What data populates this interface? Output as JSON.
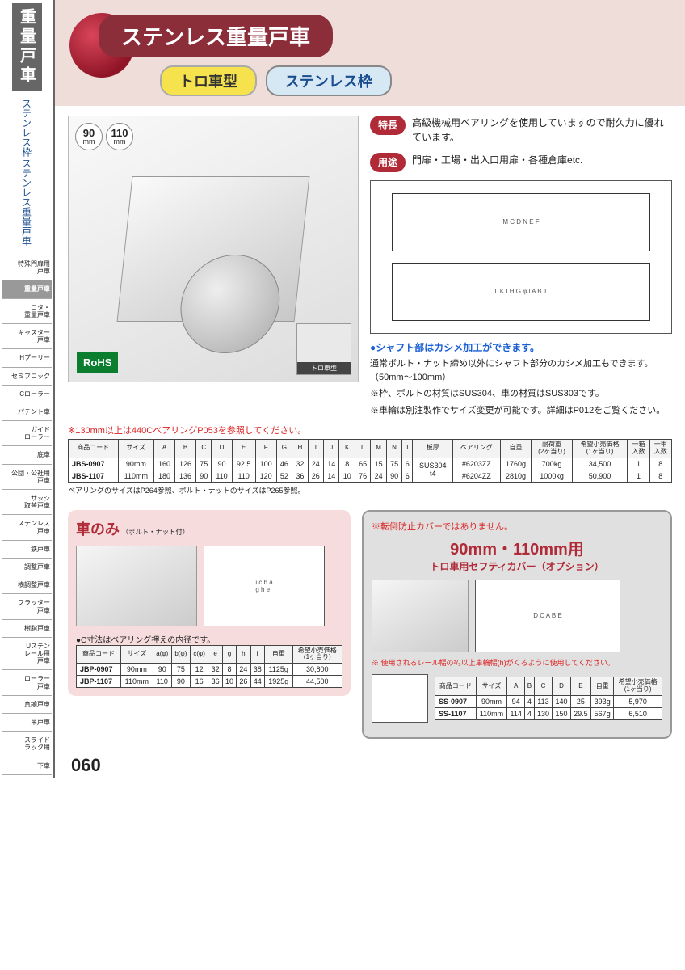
{
  "sidebar": {
    "title": "重量戸車",
    "subtitle1": "ステンレス枠",
    "subtitle2": "ステンレス重量戸車",
    "nav": [
      {
        "label": "特殊門扉用\n戸車",
        "active": false
      },
      {
        "label": "重量戸車",
        "active": true
      },
      {
        "label": "ロタ・\n重量戸車",
        "active": false
      },
      {
        "label": "キャスター\n戸車",
        "active": false
      },
      {
        "label": "Hプーリー",
        "active": false
      },
      {
        "label": "セミブロック",
        "active": false
      },
      {
        "label": "Cローラー",
        "active": false
      },
      {
        "label": "パテント車",
        "active": false
      },
      {
        "label": "ガイド\nローラー",
        "active": false
      },
      {
        "label": "底車",
        "active": false
      },
      {
        "label": "公団・公社用\n戸車",
        "active": false
      },
      {
        "label": "サッシ\n取替戸車",
        "active": false
      },
      {
        "label": "ステンレス\n戸車",
        "active": false
      },
      {
        "label": "鉄戸車",
        "active": false
      },
      {
        "label": "調整戸車",
        "active": false
      },
      {
        "label": "横調整戸車",
        "active": false
      },
      {
        "label": "フラッター\n戸車",
        "active": false
      },
      {
        "label": "樹脂戸車",
        "active": false
      },
      {
        "label": "Uステン\nレール用\n戸車",
        "active": false
      },
      {
        "label": "ローラー\n戸車",
        "active": false
      },
      {
        "label": "真鍮戸車",
        "active": false
      },
      {
        "label": "吊戸車",
        "active": false
      },
      {
        "label": "スライド\nラック用",
        "active": false
      },
      {
        "label": "下車",
        "active": false
      }
    ]
  },
  "hero": {
    "title": "ステンレス重量戸車",
    "tag1": "トロ車型",
    "tag2": "ステンレス枠"
  },
  "sizes": [
    "90",
    "110"
  ],
  "rohs": "RoHS",
  "typeThumb": "トロ車型",
  "features": {
    "label": "特長",
    "text": "高級機械用ベアリングを使用していますので耐久力に優れています。"
  },
  "uses": {
    "label": "用途",
    "text": "門扉・工場・出入口用扉・各種倉庫etc."
  },
  "shaftTitle": "●シャフト部はカシメ加工ができます。",
  "shaftNote1": "通常ボルト・ナット締め以外にシャフト部分のカシメ加工もできます。（50mm～100mm）",
  "shaftNote2": "※枠、ボルトの材質はSUS304、車の材質はSUS303です。",
  "shaftNote3": "※車輪は別注製作でサイズ変更が可能です。詳細はP012をご覧ください。",
  "redNote1": "※130mm以上は440CベアリングP053を参照してください。",
  "specTable": {
    "headers": [
      "商品コード",
      "サイズ",
      "A",
      "B",
      "C",
      "D",
      "E",
      "F",
      "G",
      "H",
      "I",
      "J",
      "K",
      "L",
      "M",
      "N",
      "T",
      "板厚",
      "ベアリング",
      "自重",
      "耐荷重\n(2ヶ当り)",
      "希望小売価格\n(1ヶ当り)",
      "一箱\n入数",
      "一甲\n入数"
    ],
    "rows": [
      [
        "JBS-0907",
        "90mm",
        "160",
        "126",
        "75",
        "90",
        "92.5",
        "100",
        "46",
        "32",
        "24",
        "14",
        "8",
        "65",
        "15",
        "75",
        "6",
        "SUS304\nt4",
        "#6203ZZ",
        "1760g",
        "700kg",
        "34,500",
        "1",
        "8"
      ],
      [
        "JBS-1107",
        "110mm",
        "180",
        "136",
        "90",
        "110",
        "110",
        "120",
        "52",
        "36",
        "26",
        "14",
        "10",
        "76",
        "24",
        "90",
        "6",
        "",
        "#6204ZZ",
        "2810g",
        "1000kg",
        "50,900",
        "1",
        "8"
      ]
    ]
  },
  "footNote1": "ベアリングのサイズはP264参照、ボルト・ナットのサイズはP265参照。",
  "wheelOnly": {
    "title": "車のみ",
    "subtitle": "（ボルト・ナット付）",
    "bullet": "●C寸法はベアリング押えの内径です。",
    "headers": [
      "商品コード",
      "サイズ",
      "a(φ)",
      "b(φ)",
      "c(φ)",
      "e",
      "g",
      "h",
      "i",
      "自重",
      "希望小売価格\n(1ヶ当り)"
    ],
    "rows": [
      [
        "JBP-0907",
        "90mm",
        "90",
        "75",
        "12",
        "32",
        "8",
        "24",
        "38",
        "1125g",
        "30,800"
      ],
      [
        "JBP-1107",
        "110mm",
        "110",
        "90",
        "16",
        "36",
        "10",
        "26",
        "44",
        "1925g",
        "44,500"
      ]
    ]
  },
  "cover": {
    "warn": "※転倒防止カバーではありません。",
    "title": "90mm・110mm用",
    "subtitle": "トロ車用セフティカバー（オプション）",
    "note": "※ 使用されるレール幅の²/₃以上車輪幅(h)がくるように使用してください。",
    "headers": [
      "商品コード",
      "サイズ",
      "A",
      "B",
      "C",
      "D",
      "E",
      "自重",
      "希望小売価格\n(1ヶ当り)"
    ],
    "rows": [
      [
        "SS-0907",
        "90mm",
        "94",
        "4",
        "113",
        "140",
        "25",
        "393g",
        "5,970"
      ],
      [
        "SS-1107",
        "110mm",
        "114",
        "4",
        "130",
        "150",
        "29.5",
        "567g",
        "6,510"
      ]
    ]
  },
  "pageNum": "060"
}
